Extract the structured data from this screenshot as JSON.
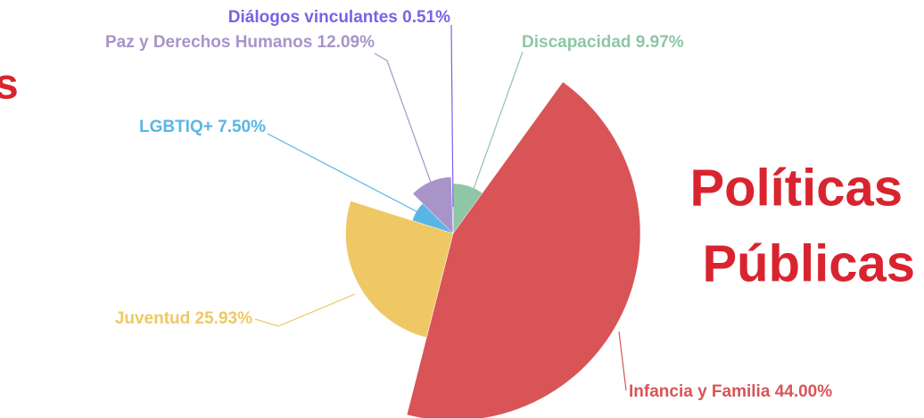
{
  "chart_data": {
    "type": "pie",
    "rose": true,
    "title_fragment": "s",
    "annotation": [
      "Políticas",
      "Públicas"
    ],
    "categories": [
      "Discapacidad",
      "Infancia y Familia",
      "Juventud",
      "LGBTIQ+",
      "Paz y Derechos Humanos",
      "Diálogos vinculantes"
    ],
    "values": [
      9.97,
      44.0,
      25.93,
      7.5,
      12.09,
      0.51
    ],
    "value_labels": [
      "9.97%",
      "44.00%",
      "25.93%",
      "7.50%",
      "12.09%",
      "0.51%"
    ],
    "colors": [
      "#8fc6a6",
      "#d95457",
      "#efc865",
      "#5ab5e6",
      "#a894c9",
      "#7a62e6"
    ]
  }
}
